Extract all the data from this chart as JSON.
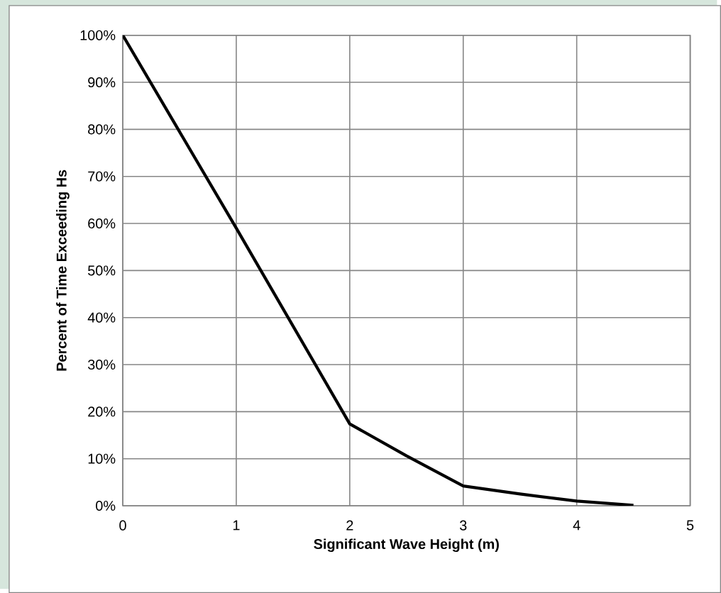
{
  "chart_data": {
    "type": "line",
    "xlabel": "Significant  Wave Height (m)",
    "ylabel": "Percent of Time Exceeding Hs",
    "series": [
      {
        "color": "#000000",
        "x": [
          0,
          1,
          2,
          2.5,
          3,
          3.5,
          4,
          4.5
        ],
        "values": [
          100,
          59,
          17.4,
          10.6,
          4.2,
          2.5,
          1,
          0.1
        ]
      }
    ],
    "xlim": [
      0,
      5
    ],
    "xticks": [
      0,
      1,
      2,
      3,
      4,
      5
    ],
    "ylim": [
      0,
      100
    ],
    "yticks": [
      {
        "value": 0,
        "label": "0%"
      },
      {
        "value": 10,
        "label": "10%"
      },
      {
        "value": 20,
        "label": "20%"
      },
      {
        "value": 30,
        "label": "30%"
      },
      {
        "value": 40,
        "label": "40%"
      },
      {
        "value": 50,
        "label": "50%"
      },
      {
        "value": 60,
        "label": "60%"
      },
      {
        "value": 70,
        "label": "70%"
      },
      {
        "value": 80,
        "label": "80%"
      },
      {
        "value": 90,
        "label": "90%"
      },
      {
        "value": 100,
        "label": "100%"
      }
    ],
    "grid": true,
    "legend": false,
    "marker": "none",
    "line_style": "solid"
  }
}
